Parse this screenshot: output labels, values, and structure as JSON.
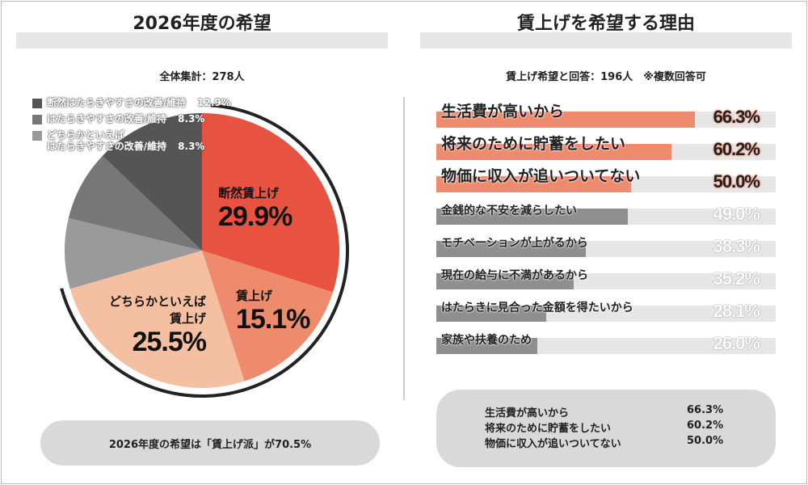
{
  "left": {
    "title": "2026年度の希望",
    "subtitle": "全体集計：278人",
    "summary": "2026年度の希望は「賃上げ派」が70.5%"
  },
  "right": {
    "title": "賃上げを希望する理由",
    "subtitle": "賃上げ希望と回答：196人　※複数回答可",
    "summary": [
      {
        "label": "生活費が高いから",
        "value": "66.3%"
      },
      {
        "label": "将来のために貯蓄をしたい",
        "value": "60.2%"
      },
      {
        "label": "物価に収入が追いついてない",
        "value": "50.0%"
      }
    ]
  },
  "chart_data": [
    {
      "type": "pie",
      "slices": [
        {
          "name": "断然賃上げ",
          "value": 29.9,
          "label": "29.9%",
          "color": "#e85240"
        },
        {
          "name": "賃上げ",
          "value": 15.1,
          "label": "15.1%",
          "color": "#ef8b6d"
        },
        {
          "name": "どちらかといえば\n賃上げ",
          "value": 25.5,
          "label": "25.5%",
          "color": "#f5c0a2"
        },
        {
          "name": "どちらかといえば\nはたらきやすさの改善/維持",
          "value": 8.3,
          "label": "8.3%",
          "color": "#9a9a9a"
        },
        {
          "name": "はたらきやすさの改善/維持",
          "value": 8.3,
          "label": "8.3%",
          "color": "#777777"
        },
        {
          "name": "断然はたらきやすさの改善/維持",
          "value": 12.9,
          "label": "12.9%",
          "color": "#555555"
        }
      ],
      "legend": "top-left"
    },
    {
      "type": "bar",
      "orientation": "horizontal",
      "xlim": [
        0,
        100
      ],
      "categories": [
        "生活費が高いから",
        "将来のために貯蓄をしたい",
        "物価に収入が追いついてない",
        "金銭的な不安を減らしたい",
        "モチベーションが上がるから",
        "現在の給与に不満があるから",
        "はたらきに見合った金額を得たいから",
        "家族や扶養のため"
      ],
      "values": [
        66.3,
        60.2,
        50.0,
        49.0,
        38.3,
        35.2,
        28.1,
        26.0
      ],
      "labels": [
        "66.3%",
        "60.2%",
        "50.0%",
        "49.0%",
        "38.3%",
        "35.2%",
        "28.1%",
        "26.0%"
      ],
      "highlight_color": "#ef8b6d",
      "base_color": "#8f8f8f",
      "track_color": "#e6e6e6"
    }
  ]
}
